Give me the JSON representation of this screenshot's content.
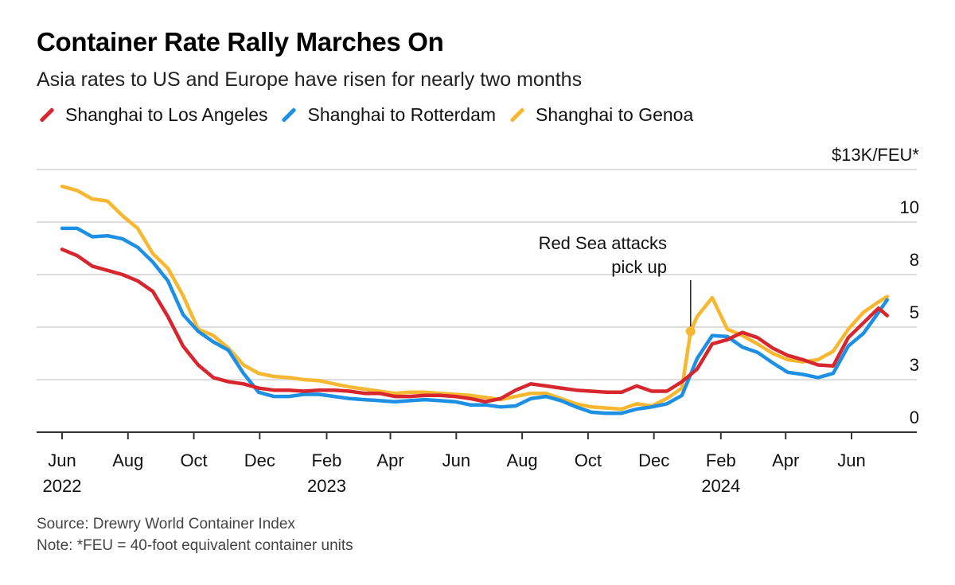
{
  "title": "Container Rate Rally Marches On",
  "subtitle": "Asia rates to US and Europe have risen for nearly two months",
  "legend": [
    {
      "label": "Shanghai to Los Angeles",
      "color": "#d7262e"
    },
    {
      "label": "Shanghai to Rotterdam",
      "color": "#1e90e4"
    },
    {
      "label": "Shanghai to Genoa",
      "color": "#f7b731"
    }
  ],
  "footer": {
    "source": "Source: Drewry World Container Index",
    "note": "Note: *FEU = 40-foot equivalent container units"
  },
  "chart_data": {
    "type": "line",
    "ylabel": "$13K/FEU*",
    "ylim": [
      0,
      12.5
    ],
    "yticks": [
      {
        "value": 0,
        "label": "0"
      },
      {
        "value": 2.5,
        "label": "3"
      },
      {
        "value": 5,
        "label": "5"
      },
      {
        "value": 7.5,
        "label": "8"
      },
      {
        "value": 10,
        "label": "10"
      },
      {
        "value": 12.5,
        "label": "$13K/FEU*"
      }
    ],
    "xlim": [
      "2022-06-01",
      "2024-07-10"
    ],
    "xticks": [
      {
        "date": "2022-06-01",
        "label": "Jun",
        "year": "2022"
      },
      {
        "date": "2022-08-01",
        "label": "Aug",
        "year": ""
      },
      {
        "date": "2022-10-01",
        "label": "Oct",
        "year": ""
      },
      {
        "date": "2022-12-01",
        "label": "Dec",
        "year": ""
      },
      {
        "date": "2023-02-01",
        "label": "Feb",
        "year": "2023"
      },
      {
        "date": "2023-04-01",
        "label": "Apr",
        "year": ""
      },
      {
        "date": "2023-06-01",
        "label": "Jun",
        "year": ""
      },
      {
        "date": "2023-08-01",
        "label": "Aug",
        "year": ""
      },
      {
        "date": "2023-10-01",
        "label": "Oct",
        "year": ""
      },
      {
        "date": "2023-12-01",
        "label": "Dec",
        "year": ""
      },
      {
        "date": "2024-02-01",
        "label": "Feb",
        "year": "2024"
      },
      {
        "date": "2024-04-01",
        "label": "Apr",
        "year": ""
      },
      {
        "date": "2024-06-01",
        "label": "Jun",
        "year": ""
      }
    ],
    "grid": true,
    "annotation": {
      "text": [
        "Red Sea attacks",
        "pick up"
      ],
      "date": "2024-01-04",
      "value": 4.8,
      "color": "#f7b731"
    },
    "series": [
      {
        "name": "Shanghai to Los Angeles",
        "color": "#d7262e",
        "points": [
          [
            "2022-06-01",
            8.7
          ],
          [
            "2022-06-15",
            8.4
          ],
          [
            "2022-06-29",
            7.9
          ],
          [
            "2022-07-13",
            7.7
          ],
          [
            "2022-07-27",
            7.5
          ],
          [
            "2022-08-10",
            7.2
          ],
          [
            "2022-08-24",
            6.7
          ],
          [
            "2022-09-07",
            5.5
          ],
          [
            "2022-09-21",
            4.1
          ],
          [
            "2022-10-05",
            3.2
          ],
          [
            "2022-10-19",
            2.6
          ],
          [
            "2022-11-02",
            2.4
          ],
          [
            "2022-11-16",
            2.3
          ],
          [
            "2022-11-30",
            2.1
          ],
          [
            "2022-12-14",
            2.0
          ],
          [
            "2022-12-28",
            2.0
          ],
          [
            "2023-01-11",
            1.95
          ],
          [
            "2023-01-25",
            2.0
          ],
          [
            "2023-02-08",
            2.0
          ],
          [
            "2023-02-22",
            1.95
          ],
          [
            "2023-03-08",
            1.85
          ],
          [
            "2023-03-22",
            1.85
          ],
          [
            "2023-04-05",
            1.7
          ],
          [
            "2023-04-19",
            1.7
          ],
          [
            "2023-05-03",
            1.75
          ],
          [
            "2023-05-17",
            1.75
          ],
          [
            "2023-05-31",
            1.7
          ],
          [
            "2023-06-14",
            1.6
          ],
          [
            "2023-06-28",
            1.45
          ],
          [
            "2023-07-12",
            1.6
          ],
          [
            "2023-07-26",
            2.0
          ],
          [
            "2023-08-09",
            2.3
          ],
          [
            "2023-08-23",
            2.2
          ],
          [
            "2023-09-06",
            2.1
          ],
          [
            "2023-09-20",
            2.0
          ],
          [
            "2023-10-04",
            1.95
          ],
          [
            "2023-10-18",
            1.9
          ],
          [
            "2023-11-01",
            1.9
          ],
          [
            "2023-11-15",
            2.2
          ],
          [
            "2023-11-29",
            1.95
          ],
          [
            "2023-12-13",
            1.95
          ],
          [
            "2023-12-27",
            2.4
          ],
          [
            "2024-01-10",
            3.0
          ],
          [
            "2024-01-24",
            4.2
          ],
          [
            "2024-02-07",
            4.4
          ],
          [
            "2024-02-21",
            4.75
          ],
          [
            "2024-03-06",
            4.5
          ],
          [
            "2024-03-20",
            4.0
          ],
          [
            "2024-04-03",
            3.65
          ],
          [
            "2024-04-17",
            3.45
          ],
          [
            "2024-05-01",
            3.2
          ],
          [
            "2024-05-15",
            3.15
          ],
          [
            "2024-05-29",
            4.5
          ],
          [
            "2024-06-12",
            5.2
          ],
          [
            "2024-06-26",
            5.9
          ],
          [
            "2024-07-04",
            5.55
          ]
        ]
      },
      {
        "name": "Shanghai to Rotterdam",
        "color": "#1e90e4",
        "points": [
          [
            "2022-06-01",
            9.7
          ],
          [
            "2022-06-15",
            9.7
          ],
          [
            "2022-06-29",
            9.3
          ],
          [
            "2022-07-13",
            9.35
          ],
          [
            "2022-07-27",
            9.2
          ],
          [
            "2022-08-10",
            8.8
          ],
          [
            "2022-08-24",
            8.1
          ],
          [
            "2022-09-07",
            7.2
          ],
          [
            "2022-09-21",
            5.6
          ],
          [
            "2022-10-05",
            4.8
          ],
          [
            "2022-10-19",
            4.3
          ],
          [
            "2022-11-02",
            3.9
          ],
          [
            "2022-11-16",
            2.8
          ],
          [
            "2022-11-30",
            1.9
          ],
          [
            "2022-12-14",
            1.7
          ],
          [
            "2022-12-28",
            1.7
          ],
          [
            "2023-01-11",
            1.8
          ],
          [
            "2023-01-25",
            1.8
          ],
          [
            "2023-02-08",
            1.7
          ],
          [
            "2023-02-22",
            1.6
          ],
          [
            "2023-03-08",
            1.55
          ],
          [
            "2023-03-22",
            1.5
          ],
          [
            "2023-04-05",
            1.45
          ],
          [
            "2023-04-19",
            1.5
          ],
          [
            "2023-05-03",
            1.55
          ],
          [
            "2023-05-17",
            1.5
          ],
          [
            "2023-05-31",
            1.45
          ],
          [
            "2023-06-14",
            1.3
          ],
          [
            "2023-06-28",
            1.3
          ],
          [
            "2023-07-12",
            1.2
          ],
          [
            "2023-07-26",
            1.25
          ],
          [
            "2023-08-09",
            1.6
          ],
          [
            "2023-08-23",
            1.7
          ],
          [
            "2023-09-06",
            1.5
          ],
          [
            "2023-09-20",
            1.2
          ],
          [
            "2023-10-04",
            0.95
          ],
          [
            "2023-10-18",
            0.9
          ],
          [
            "2023-11-01",
            0.9
          ],
          [
            "2023-11-15",
            1.1
          ],
          [
            "2023-11-29",
            1.2
          ],
          [
            "2023-12-13",
            1.35
          ],
          [
            "2023-12-27",
            1.75
          ],
          [
            "2024-01-10",
            3.5
          ],
          [
            "2024-01-24",
            4.6
          ],
          [
            "2024-02-07",
            4.55
          ],
          [
            "2024-02-21",
            4.05
          ],
          [
            "2024-03-06",
            3.8
          ],
          [
            "2024-03-20",
            3.3
          ],
          [
            "2024-04-03",
            2.85
          ],
          [
            "2024-04-17",
            2.75
          ],
          [
            "2024-05-01",
            2.6
          ],
          [
            "2024-05-15",
            2.8
          ],
          [
            "2024-05-29",
            4.1
          ],
          [
            "2024-06-12",
            4.7
          ],
          [
            "2024-06-26",
            5.7
          ],
          [
            "2024-07-04",
            6.3
          ]
        ]
      },
      {
        "name": "Shanghai to Genoa",
        "color": "#f7b731",
        "points": [
          [
            "2022-06-01",
            11.7
          ],
          [
            "2022-06-15",
            11.5
          ],
          [
            "2022-06-29",
            11.1
          ],
          [
            "2022-07-13",
            11.0
          ],
          [
            "2022-07-27",
            10.3
          ],
          [
            "2022-08-10",
            9.7
          ],
          [
            "2022-08-24",
            8.5
          ],
          [
            "2022-09-07",
            7.8
          ],
          [
            "2022-09-21",
            6.5
          ],
          [
            "2022-10-05",
            4.9
          ],
          [
            "2022-10-19",
            4.6
          ],
          [
            "2022-11-02",
            4.0
          ],
          [
            "2022-11-16",
            3.2
          ],
          [
            "2022-11-30",
            2.8
          ],
          [
            "2022-12-14",
            2.65
          ],
          [
            "2022-12-28",
            2.6
          ],
          [
            "2023-01-11",
            2.5
          ],
          [
            "2023-01-25",
            2.45
          ],
          [
            "2023-02-08",
            2.3
          ],
          [
            "2023-02-22",
            2.15
          ],
          [
            "2023-03-08",
            2.05
          ],
          [
            "2023-03-22",
            1.95
          ],
          [
            "2023-04-05",
            1.85
          ],
          [
            "2023-04-19",
            1.9
          ],
          [
            "2023-05-03",
            1.9
          ],
          [
            "2023-05-17",
            1.85
          ],
          [
            "2023-05-31",
            1.8
          ],
          [
            "2023-06-14",
            1.75
          ],
          [
            "2023-06-28",
            1.65
          ],
          [
            "2023-07-12",
            1.55
          ],
          [
            "2023-07-26",
            1.7
          ],
          [
            "2023-08-09",
            1.85
          ],
          [
            "2023-08-23",
            1.85
          ],
          [
            "2023-09-06",
            1.6
          ],
          [
            "2023-09-20",
            1.35
          ],
          [
            "2023-10-04",
            1.2
          ],
          [
            "2023-10-18",
            1.15
          ],
          [
            "2023-11-01",
            1.1
          ],
          [
            "2023-11-15",
            1.35
          ],
          [
            "2023-11-29",
            1.25
          ],
          [
            "2023-12-13",
            1.6
          ],
          [
            "2023-12-27",
            2.1
          ],
          [
            "2024-01-04",
            4.8
          ],
          [
            "2024-01-10",
            5.5
          ],
          [
            "2024-01-24",
            6.4
          ],
          [
            "2024-02-07",
            4.9
          ],
          [
            "2024-02-21",
            4.6
          ],
          [
            "2024-03-06",
            4.2
          ],
          [
            "2024-03-20",
            3.75
          ],
          [
            "2024-04-03",
            3.45
          ],
          [
            "2024-04-17",
            3.35
          ],
          [
            "2024-05-01",
            3.45
          ],
          [
            "2024-05-15",
            3.85
          ],
          [
            "2024-05-29",
            4.9
          ],
          [
            "2024-06-12",
            5.7
          ],
          [
            "2024-06-26",
            6.2
          ],
          [
            "2024-07-04",
            6.45
          ]
        ]
      }
    ]
  }
}
